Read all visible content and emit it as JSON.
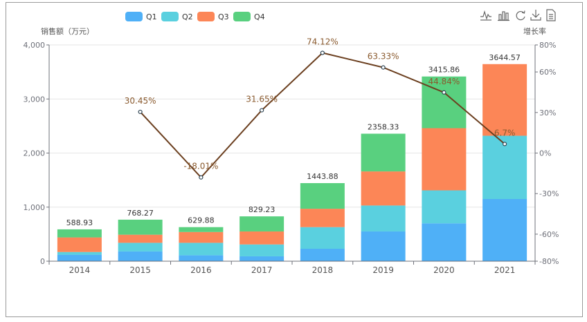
{
  "chart_data": {
    "type": "bar",
    "stacked": true,
    "categories": [
      "2014",
      "2015",
      "2016",
      "2017",
      "2018",
      "2019",
      "2020",
      "2021"
    ],
    "series": [
      {
        "name": "Q1",
        "color": "#4fb0f7",
        "values": [
          120,
          180,
          110,
          90,
          230,
          550,
          700,
          1150
        ]
      },
      {
        "name": "Q2",
        "color": "#5ad0df",
        "values": [
          50,
          160,
          230,
          220,
          400,
          480,
          610,
          1170
        ]
      },
      {
        "name": "Q3",
        "color": "#fc8657",
        "values": [
          270,
          150,
          200,
          240,
          340,
          630,
          1150,
          1325
        ]
      },
      {
        "name": "Q4",
        "color": "#59d07f",
        "values": [
          149,
          278,
          90,
          279,
          474,
          698,
          956,
          0
        ]
      }
    ],
    "totals": [
      "588.93",
      "768.27",
      "629.88",
      "829.23",
      "1443.88",
      "2358.33",
      "3415.86",
      "3644.57"
    ],
    "growth": {
      "name": "增长率",
      "color": "#6b3f1f",
      "label_color": "#8a5a2e",
      "values": [
        null,
        30.45,
        -18.01,
        31.65,
        74.12,
        63.33,
        44.84,
        6.7
      ],
      "labels": [
        "",
        "30.45%",
        "-18.01%",
        "31.65%",
        "74.12%",
        "63.33%",
        "44.84%",
        "6.7%"
      ]
    },
    "ylabel": "销售额（万元）",
    "ylim": [
      0,
      4000
    ],
    "yticks": [
      "0",
      "1,000",
      "2,000",
      "3,000",
      "4,000"
    ],
    "y2label": "增长率",
    "y2lim": [
      -80,
      80
    ],
    "y2ticks": [
      "-80%",
      "-60%",
      "-30%",
      "0%",
      "30%",
      "60%",
      "80%"
    ],
    "y2tick_values": [
      -80,
      -60,
      -30,
      0,
      30,
      60,
      80
    ],
    "legend_position": "top-left",
    "grid": true
  },
  "toolbox": [
    "line-chart-icon",
    "bar-chart-icon",
    "restore-icon",
    "download-icon",
    "data-view-icon"
  ]
}
